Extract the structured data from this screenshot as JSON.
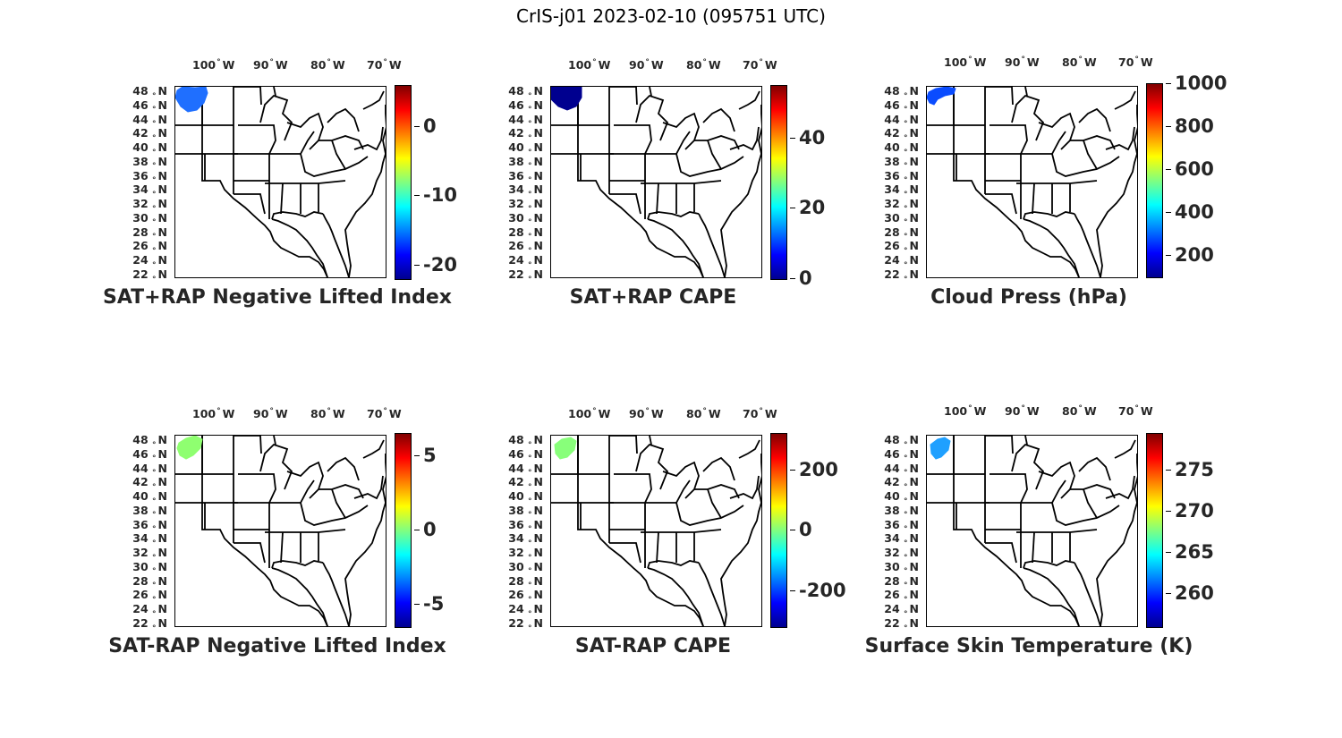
{
  "title": "CrIS-j01 2023-02-10 (095751 UTC)",
  "lon_ticks": [
    {
      "deg": "100",
      "suffix": "W"
    },
    {
      "deg": "90",
      "suffix": "W"
    },
    {
      "deg": "80",
      "suffix": "W"
    },
    {
      "deg": "70",
      "suffix": "W"
    }
  ],
  "lat_ticks": [
    "48",
    "46",
    "44",
    "42",
    "40",
    "38",
    "36",
    "34",
    "32",
    "30",
    "28",
    "26",
    "24",
    "22"
  ],
  "lat_suffix": "N",
  "panels": [
    {
      "title": "SAT+RAP Negative Lifted Index",
      "colorbar": {
        "min": -22,
        "max": 6,
        "ticks": [
          "0",
          "-10",
          "-20"
        ],
        "tick_values": [
          0,
          -10,
          -20
        ]
      },
      "obs_color": "#1f6fff"
    },
    {
      "title": "SAT+RAP CAPE",
      "colorbar": {
        "min": 0,
        "max": 55,
        "ticks": [
          "40",
          "20",
          "0"
        ],
        "tick_values": [
          40,
          20,
          0
        ]
      },
      "obs_color": "#00008f"
    },
    {
      "title": "Cloud Press (hPa)",
      "colorbar": {
        "min": 100,
        "max": 1000,
        "ticks": [
          "1000",
          "800",
          "600",
          "400",
          "200"
        ],
        "tick_values": [
          1000,
          800,
          600,
          400,
          200
        ]
      },
      "obs_color": "#0a4cff"
    },
    {
      "title": "SAT-RAP Negative Lifted Index",
      "colorbar": {
        "min": -6.5,
        "max": 6.5,
        "ticks": [
          "5",
          "0",
          "-5"
        ],
        "tick_values": [
          5,
          0,
          -5
        ]
      },
      "obs_color": "#8fff70"
    },
    {
      "title": "SAT-RAP CAPE",
      "colorbar": {
        "min": -320,
        "max": 320,
        "ticks": [
          "200",
          "0",
          "-200"
        ],
        "tick_values": [
          200,
          0,
          -200
        ]
      },
      "obs_color": "#88ff7a"
    },
    {
      "title": "Surface Skin Temperature (K)",
      "colorbar": {
        "min": 256,
        "max": 279.5,
        "ticks": [
          "275",
          "270",
          "265",
          "260"
        ],
        "tick_values": [
          275,
          270,
          265,
          260
        ]
      },
      "obs_color": "#1fa0ff"
    }
  ]
}
